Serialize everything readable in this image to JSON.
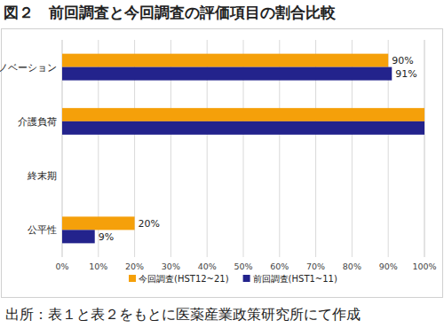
{
  "chart_data": {
    "type": "bar",
    "orientation": "horizontal",
    "title": "図２　前回調査と今回調査の評価項目の割合比較",
    "note": "出所：表１と表２をもとに医薬産業政策研究所にて作成",
    "categories": [
      "イノベーション",
      "介護負荷",
      "終末期",
      "公平性"
    ],
    "series": [
      {
        "name": "今回調査(HST12~21)",
        "color": "#f5a00a",
        "values": [
          90,
          100,
          0,
          20
        ],
        "value_labels": [
          "90%",
          null,
          null,
          "20%"
        ]
      },
      {
        "name": "前回調査(HST1~11)",
        "color": "#23238c",
        "values": [
          91,
          100,
          0,
          9
        ],
        "value_labels": [
          "91%",
          null,
          null,
          "9%"
        ]
      }
    ],
    "xlim": [
      0,
      100
    ],
    "xticks": [
      {
        "value": 0,
        "label": "0%"
      },
      {
        "value": 10,
        "label": "10%"
      },
      {
        "value": 20,
        "label": "20%"
      },
      {
        "value": 30,
        "label": "30%"
      },
      {
        "value": 40,
        "label": "40%"
      },
      {
        "value": 50,
        "label": "50%"
      },
      {
        "value": 60,
        "label": "60%"
      },
      {
        "value": 70,
        "label": "70%"
      },
      {
        "value": 80,
        "label": "80%"
      },
      {
        "value": 90,
        "label": "90%"
      },
      {
        "value": 100,
        "label": "100%"
      }
    ],
    "grid": true,
    "data_labels": true,
    "legend": "bottom"
  }
}
